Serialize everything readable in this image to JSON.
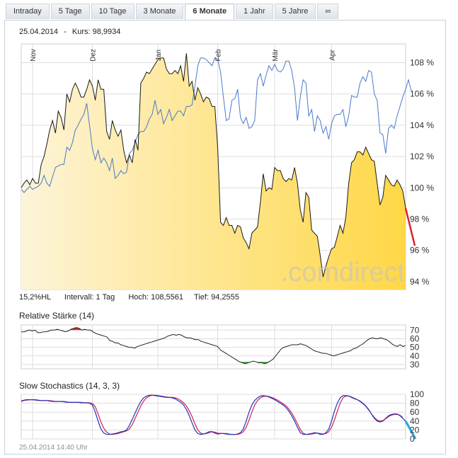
{
  "tabs": [
    {
      "label": "Intraday",
      "active": false
    },
    {
      "label": "5 Tage",
      "active": false
    },
    {
      "label": "10 Tage",
      "active": false
    },
    {
      "label": "3 Monate",
      "active": false
    },
    {
      "label": "6 Monate",
      "active": true
    },
    {
      "label": "1 Jahr",
      "active": false
    },
    {
      "label": "5 Jahre",
      "active": false
    },
    {
      "label": "∞",
      "active": false
    }
  ],
  "header": {
    "date": "25.04.2014",
    "separator": "-",
    "kurs_label": "Kurs:",
    "kurs_value": "98,9934"
  },
  "stats": {
    "hl": "15,2%HL",
    "interval": "Intervall: 1 Tag",
    "high": "Hoch: 108,5561",
    "low": "Tief: 94,2555"
  },
  "watermark": ".comdirect",
  "footer": {
    "timestamp": "25.04.2014 14:40 Uhr"
  },
  "colors": {
    "price_fill_top": "#ffd746",
    "price_fill_bottom": "#fdf4d8",
    "price_line": "#1a1a1a",
    "benchmark_line": "#4a79c9",
    "tail_line": "#dd2222",
    "rsi_over": "#dd2222",
    "rsi_under": "#33aa33",
    "stoch_k": "#2233bb",
    "stoch_d": "#cc2255",
    "stoch_tail": "#29a4e0",
    "grid": "#dddddd"
  },
  "chart_data": [
    {
      "type": "area",
      "name": "price",
      "x_ticks": [
        "Nov",
        "Dez",
        "Jan",
        "Feb",
        "Mär",
        "Apr"
      ],
      "x_tick_index": [
        4,
        25,
        48,
        69,
        89,
        109
      ],
      "yticks": [
        "108 %",
        "106 %",
        "104 %",
        "102 %",
        "100 %",
        "98 %",
        "96 %",
        "94 %"
      ],
      "ytick_values": [
        108,
        106,
        104,
        102,
        100,
        98,
        96,
        94
      ],
      "ylim": [
        93.5,
        109.2
      ],
      "grid": true,
      "series": [
        {
          "role": "price",
          "values": [
            100,
            100.3,
            100.5,
            100.2,
            100.6,
            100.3,
            100.3,
            101.5,
            102,
            102.8,
            103.7,
            104.3,
            103.5,
            104.9,
            104.5,
            103.7,
            106,
            105.5,
            106.3,
            106.7,
            106.3,
            105.8,
            105.8,
            106.3,
            106.9,
            106.5,
            105.6,
            106.9,
            106.3,
            106.3,
            103.6,
            103.1,
            104.3,
            103.7,
            103.3,
            103.7,
            102.4,
            101.6,
            102.1,
            101.6,
            103.1,
            102.4,
            106.7,
            107,
            107.4,
            107.3,
            107.6,
            107.9,
            108.2,
            108.3,
            108.3,
            107.6,
            107.3,
            107.3,
            107.5,
            107.3,
            107.8,
            106.8,
            108.6,
            106.5,
            106.8,
            105.6,
            106.4,
            106,
            105.5,
            105.8,
            105.7,
            105.2,
            105.2,
            102.6,
            97.8,
            97.6,
            98.1,
            97.6,
            97.6,
            97.1,
            97.6,
            97.5,
            96.8,
            96.5,
            96.1,
            97.1,
            97.3,
            97.5,
            99.1,
            100.9,
            99.8,
            100,
            99.9,
            101.3,
            101.1,
            101.1,
            100.6,
            100.4,
            100.6,
            100.5,
            101.3,
            100.3,
            98.6,
            97.8,
            99.7,
            99.4,
            97.3,
            97.1,
            96.9,
            95.7,
            94.3,
            95,
            95.6,
            96.1,
            96.2,
            96.9,
            97.6,
            97.1,
            98.1,
            100.3,
            101.6,
            101.8,
            102.3,
            102.3,
            102.1,
            102.6,
            102.2,
            101.8,
            101.7,
            100.3,
            98.9,
            99.4,
            100.8,
            100.5,
            100.2,
            100.1,
            100.5,
            100.2,
            99.8,
            98.7
          ]
        },
        {
          "role": "benchmark",
          "values": [
            99.9,
            99.7,
            99.9,
            100.1,
            99.9,
            100,
            100.1,
            100.3,
            100.8,
            100.3,
            100.1,
            100.7,
            101.3,
            101.4,
            101.5,
            101.5,
            102.6,
            102.4,
            102.9,
            103.7,
            104,
            104.4,
            104.7,
            105.4,
            104,
            102.5,
            101.8,
            102.4,
            101.6,
            101.9,
            101.6,
            101.1,
            101.9,
            100.6,
            100.8,
            101.1,
            100.9,
            101,
            102.2,
            102.4,
            102.9,
            103.4,
            103.6,
            103.6,
            103.9,
            104.4,
            104.7,
            105.6,
            104.7,
            105,
            104.1,
            104.5,
            105,
            104.3,
            104.6,
            104.9,
            104.9,
            104.6,
            105.2,
            105.2,
            105.3,
            106.5,
            107.8,
            108.3,
            108.3,
            108.2,
            108,
            107.8,
            108.3,
            108.2,
            107.4,
            105.8,
            104.3,
            104.4,
            105.6,
            105.7,
            106.3,
            104.5,
            104.1,
            104.5,
            103.8,
            103.9,
            104.3,
            106.9,
            107.3,
            106.5,
            107.2,
            107.8,
            107.5,
            107.9,
            107.5,
            107.4,
            107.6,
            108.1,
            108.1,
            107.5,
            106.4,
            104.3,
            105.8,
            106.9,
            106.7,
            104.6,
            105,
            103.6,
            104.6,
            104.3,
            103.5,
            103.9,
            103.1,
            104.1,
            104.6,
            104.7,
            104.7,
            105,
            103.9,
            104.6,
            105.9,
            105.8,
            105.8,
            106.7,
            107.1,
            106.8,
            107.5,
            107.4,
            106,
            105.6,
            103.5,
            103.4,
            102.2,
            103.8,
            104,
            103.8,
            104.6,
            105.2,
            105.8,
            106.3,
            106.9,
            106.2
          ]
        },
        {
          "role": "tail",
          "values": [
            98.7,
            96.3
          ]
        }
      ]
    },
    {
      "type": "line",
      "name": "Relative Stärke (14)",
      "title": "Relative Stärke (14)",
      "yticks": [
        "70",
        "60",
        "50",
        "40",
        "30"
      ],
      "ytick_values": [
        70,
        60,
        50,
        40,
        30
      ],
      "ylim": [
        25,
        76
      ],
      "thresholds": [
        30,
        70
      ],
      "values": [
        68,
        68,
        69,
        70,
        69,
        70,
        67,
        67,
        68,
        68,
        69,
        70,
        70,
        71,
        70,
        69,
        68,
        69,
        71,
        72,
        73,
        72,
        70,
        71,
        70,
        70,
        68,
        66,
        65,
        64,
        63,
        62,
        58,
        57,
        55,
        55,
        53,
        52,
        51,
        50,
        50,
        49,
        51,
        52,
        53,
        54,
        55,
        56,
        57,
        58,
        59,
        60,
        61,
        63,
        64,
        65,
        64,
        65,
        64,
        62,
        61,
        61,
        60,
        59,
        59,
        57,
        56,
        55,
        54,
        53,
        52,
        51,
        47,
        45,
        43,
        41,
        39,
        37,
        35,
        33,
        32,
        31,
        32,
        33,
        34,
        33,
        32,
        32,
        31,
        32,
        34,
        36,
        40,
        44,
        48,
        50,
        51,
        52,
        53,
        53,
        53,
        54,
        53,
        52,
        50,
        48,
        46,
        45,
        44,
        43,
        43,
        42,
        41,
        40,
        41,
        42,
        43,
        44,
        45,
        46,
        48,
        49,
        51,
        53,
        55,
        58,
        60,
        61,
        60,
        60,
        61,
        60,
        59,
        57,
        54,
        52,
        51,
        53,
        51,
        52
      ]
    },
    {
      "type": "line",
      "name": "Slow Stochastics (14, 3, 3)",
      "title": "Slow Stochastics (14, 3, 3)",
      "yticks": [
        "100",
        "80",
        "60",
        "40",
        "20",
        "0"
      ],
      "ytick_values": [
        100,
        80,
        60,
        40,
        20,
        0
      ],
      "ylim": [
        0,
        100
      ],
      "series": [
        {
          "role": "k",
          "values": [
            85,
            87,
            88,
            88,
            88,
            87,
            86,
            86,
            86,
            86,
            85,
            84,
            84,
            84,
            84,
            83,
            82,
            82,
            82,
            82,
            82,
            81,
            81,
            81,
            80,
            76,
            60,
            40,
            22,
            13,
            10,
            10,
            11,
            12,
            14,
            16,
            17,
            20,
            30,
            44,
            58,
            72,
            84,
            92,
            96,
            98,
            98,
            97,
            96,
            95,
            94,
            93,
            93,
            92,
            90,
            86,
            82,
            76,
            66,
            52,
            36,
            20,
            12,
            10,
            11,
            13,
            16,
            16,
            13,
            11,
            12,
            12,
            11,
            10,
            10,
            10,
            11,
            14,
            22,
            40,
            60,
            76,
            86,
            92,
            96,
            97,
            96,
            94,
            91,
            88,
            84,
            80,
            76,
            70,
            62,
            52,
            40,
            26,
            14,
            10,
            10,
            11,
            12,
            14,
            13,
            10,
            10,
            14,
            22,
            40,
            62,
            80,
            92,
            97,
            97,
            96,
            93,
            90,
            88,
            85,
            80,
            74,
            66,
            56,
            46,
            40,
            38,
            40,
            46,
            52,
            55,
            56,
            56,
            52,
            46,
            40
          ]
        },
        {
          "role": "d",
          "values": [
            84,
            86,
            87,
            88,
            88,
            88,
            87,
            86,
            86,
            86,
            86,
            85,
            84,
            84,
            84,
            84,
            83,
            82,
            82,
            82,
            82,
            82,
            81,
            81,
            81,
            79,
            72,
            56,
            38,
            24,
            15,
            11,
            10,
            11,
            12,
            14,
            16,
            18,
            22,
            32,
            46,
            60,
            74,
            85,
            92,
            96,
            98,
            98,
            97,
            96,
            95,
            94,
            93,
            93,
            92,
            90,
            86,
            81,
            74,
            63,
            50,
            34,
            20,
            13,
            11,
            12,
            14,
            16,
            15,
            13,
            12,
            12,
            12,
            11,
            10,
            10,
            10,
            12,
            16,
            26,
            42,
            60,
            76,
            86,
            92,
            95,
            96,
            95,
            93,
            90,
            87,
            83,
            79,
            74,
            67,
            58,
            47,
            34,
            21,
            13,
            10,
            10,
            11,
            12,
            13,
            12,
            11,
            12,
            16,
            26,
            42,
            62,
            80,
            92,
            96,
            96,
            94,
            91,
            88,
            84,
            79,
            73,
            65,
            56,
            48,
            42,
            40,
            41,
            45,
            50,
            53,
            55,
            55,
            53,
            48
          ]
        },
        {
          "role": "tail",
          "values": [
            40,
            0
          ]
        }
      ]
    }
  ]
}
